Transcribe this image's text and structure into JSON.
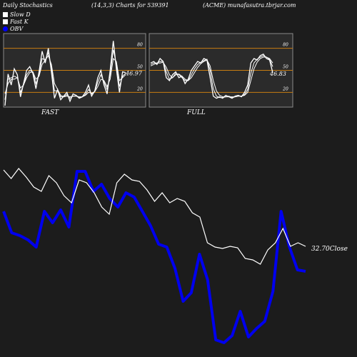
{
  "header": {
    "title": "Daily Stochastics",
    "params": "(14,3,3) Charts for 539391",
    "site": "(ACME) munafasutra.tbrjar.com"
  },
  "legend": [
    {
      "label": "Slow  D",
      "swatch": "white"
    },
    {
      "label": "Fast K",
      "swatch": "white"
    },
    {
      "label": "OBV",
      "swatch": "blue"
    }
  ],
  "colors": {
    "background": "#1c1c1c",
    "panel": "#2b2b2b",
    "panel_border": "#8a8a8a",
    "stoch_line": "#ffffff",
    "level_line": "#c87d12",
    "price_line": "#ffffff",
    "obv_line": "#0000ee"
  },
  "chart_data": [
    {
      "type": "line",
      "panel": "FAST",
      "xlabel": "FAST",
      "ylim": [
        0,
        100
      ],
      "yticks": [
        20,
        50,
        80
      ],
      "levels": [
        20,
        50,
        80
      ],
      "last_value_label": "46.97",
      "series": [
        {
          "values": [
            2,
            45,
            30,
            52,
            44,
            14,
            32,
            50,
            55,
            46,
            25,
            48,
            76,
            60,
            80,
            48,
            12,
            24,
            10,
            15,
            20,
            8,
            18,
            16,
            12,
            14,
            20,
            30,
            15,
            22,
            40,
            50,
            30,
            18,
            50,
            90,
            52,
            20,
            48,
            46.97
          ]
        },
        {
          "values": [
            10,
            38,
            40,
            42,
            40,
            20,
            30,
            44,
            50,
            48,
            32,
            44,
            66,
            64,
            74,
            54,
            22,
            22,
            14,
            14,
            17,
            12,
            15,
            15,
            13,
            14,
            17,
            24,
            18,
            21,
            34,
            44,
            34,
            24,
            44,
            78,
            58,
            28,
            42,
            46
          ]
        },
        {
          "values": [
            18,
            32,
            38,
            38,
            40,
            26,
            30,
            40,
            47,
            48,
            38,
            42,
            58,
            64,
            70,
            58,
            32,
            24,
            16,
            14,
            15,
            14,
            15,
            15,
            14,
            14,
            16,
            20,
            19,
            21,
            28,
            38,
            36,
            28,
            38,
            66,
            62,
            36,
            40,
            44
          ]
        }
      ]
    },
    {
      "type": "line",
      "panel": "FULL",
      "xlabel": "FULL",
      "ylim": [
        0,
        100
      ],
      "yticks": [
        20,
        50,
        80
      ],
      "levels": [
        20,
        50,
        80
      ],
      "last_value_label": "46.83",
      "series": [
        {
          "values": [
            60,
            62,
            58,
            66,
            62,
            40,
            36,
            44,
            48,
            40,
            42,
            32,
            38,
            50,
            56,
            62,
            60,
            66,
            64,
            40,
            15,
            12,
            14,
            12,
            16,
            14,
            12,
            15,
            16,
            14,
            20,
            30,
            60,
            66,
            64,
            70,
            72,
            66,
            64,
            46.83
          ]
        },
        {
          "values": [
            58,
            60,
            60,
            62,
            62,
            48,
            38,
            40,
            46,
            44,
            40,
            36,
            36,
            44,
            52,
            58,
            61,
            63,
            65,
            50,
            25,
            15,
            13,
            13,
            14,
            15,
            13,
            14,
            15,
            15,
            17,
            24,
            46,
            60,
            65,
            68,
            70,
            68,
            65,
            55
          ]
        },
        {
          "values": [
            56,
            58,
            60,
            60,
            61,
            54,
            44,
            40,
            44,
            45,
            42,
            38,
            36,
            40,
            47,
            54,
            59,
            62,
            64,
            56,
            36,
            22,
            16,
            14,
            14,
            14,
            14,
            14,
            15,
            15,
            16,
            20,
            36,
            52,
            61,
            66,
            68,
            68,
            66,
            60
          ]
        }
      ]
    },
    {
      "type": "line",
      "panel": "price-obv",
      "price_label": "32.70",
      "price_label_suffix": "Close",
      "series": [
        {
          "kind": "price",
          "y": [
            238,
            250,
            236,
            248,
            262,
            268,
            246,
            256,
            274,
            284,
            252,
            256,
            270,
            290,
            300,
            256,
            244,
            252,
            254,
            266,
            282,
            270,
            284,
            278,
            282,
            298,
            304,
            340,
            346,
            348,
            345,
            347,
            362,
            364,
            370,
            350,
            340,
            320,
            345,
            340,
            345
          ]
        },
        {
          "kind": "obv",
          "y": [
            296,
            326,
            330,
            336,
            346,
            296,
            312,
            294,
            318,
            240,
            240,
            268,
            258,
            278,
            290,
            270,
            276,
            296,
            316,
            342,
            346,
            376,
            422,
            410,
            356,
            392,
            476,
            480,
            470,
            436,
            472,
            460,
            450,
            408,
            296,
            345,
            378,
            380
          ]
        }
      ]
    }
  ]
}
